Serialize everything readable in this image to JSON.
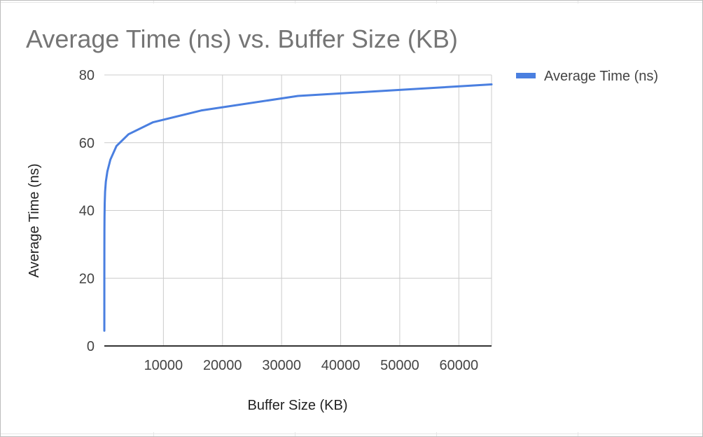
{
  "chart_data": {
    "type": "line",
    "title": "Average Time (ns) vs. Buffer Size (KB)",
    "xlabel": "Buffer Size (KB)",
    "ylabel": "Average Time (ns)",
    "xlim": [
      0,
      65536
    ],
    "ylim": [
      0,
      80
    ],
    "x_ticks": [
      10000,
      20000,
      30000,
      40000,
      50000,
      60000
    ],
    "x_tick_labels": [
      "10000",
      "20000",
      "30000",
      "40000",
      "50000",
      "60000"
    ],
    "y_ticks": [
      0,
      20,
      40,
      60,
      80
    ],
    "y_tick_labels": [
      "0",
      "20",
      "40",
      "60",
      "80"
    ],
    "grid": true,
    "legend_position": "right",
    "series": [
      {
        "name": "Average Time (ns)",
        "color": "#4a7fe0",
        "x": [
          1,
          2,
          4,
          8,
          16,
          32,
          64,
          128,
          256,
          512,
          1024,
          2048,
          4096,
          8192,
          16384,
          32768,
          65536
        ],
        "y": [
          4.5,
          12,
          20,
          28,
          34,
          38,
          42,
          45.5,
          48.5,
          51.5,
          55,
          59,
          62.5,
          66,
          69.5,
          73.8,
          77.2
        ]
      }
    ]
  }
}
